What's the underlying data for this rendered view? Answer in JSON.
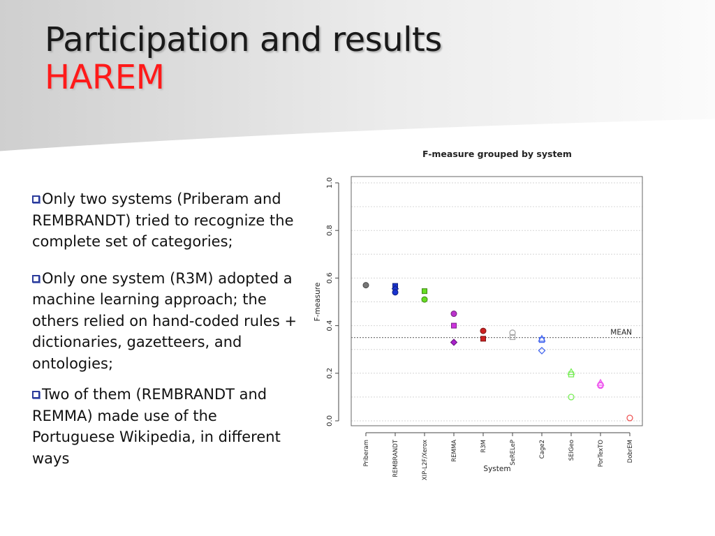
{
  "slide": {
    "title": "Participation and results",
    "subtitle": "HAREM",
    "bullets": [
      "Only two systems (Priberam and REMBRANDT) tried to recognize the complete set of categories;",
      "Only one system (R3M) adopted a machine learning approach; the others relied on hand-coded rules  + dictionaries, gazetteers, and ontologies;",
      "Two of them (REMBRANDT and REMMA) made use of the Portuguese Wikipedia, in different ways"
    ]
  },
  "colors": {
    "title": "#1a1a1a",
    "subtitle": "#ff1a1a",
    "bullet_box": "#2a3a9a"
  },
  "chart_data": {
    "type": "scatter",
    "title": "F-measure grouped by system",
    "xlabel": "System",
    "ylabel": "F-measure",
    "ylim": [
      0,
      1
    ],
    "y_ticks": [
      "0.0",
      "0.2",
      "0.4",
      "0.6",
      "0.8",
      "1.0"
    ],
    "grid": true,
    "categories": [
      "Priberam",
      "REMBRANDT",
      "XIP-L2F/Xerox",
      "REMMA",
      "R3M",
      "SeRELeP",
      "Cage2",
      "SEIGeo",
      "PorTexTO",
      "DobrEM"
    ],
    "mean": 0.35,
    "mean_label": "MEAN",
    "points": [
      {
        "x": "Priberam",
        "y": 0.57,
        "shape": "circle",
        "color": "#777777",
        "filled": true
      },
      {
        "x": "REMBRANDT",
        "y": 0.567,
        "shape": "square",
        "color": "#1a34d0",
        "filled": true
      },
      {
        "x": "REMBRANDT",
        "y": 0.555,
        "shape": "diamond",
        "color": "#1a34d0",
        "filled": true
      },
      {
        "x": "REMBRANDT",
        "y": 0.54,
        "shape": "circle",
        "color": "#1a34d0",
        "filled": true
      },
      {
        "x": "XIP-L2F/Xerox",
        "y": 0.545,
        "shape": "square",
        "color": "#66dd22",
        "filled": true
      },
      {
        "x": "XIP-L2F/Xerox",
        "y": 0.51,
        "shape": "circle",
        "color": "#66dd22",
        "filled": true
      },
      {
        "x": "REMMA",
        "y": 0.45,
        "shape": "circle",
        "color": "#bb33cc",
        "filled": true
      },
      {
        "x": "REMMA",
        "y": 0.4,
        "shape": "square",
        "color": "#cc33dd",
        "filled": true
      },
      {
        "x": "REMMA",
        "y": 0.33,
        "shape": "diamond",
        "color": "#aa22cc",
        "filled": true
      },
      {
        "x": "R3M",
        "y": 0.378,
        "shape": "circle",
        "color": "#cc2222",
        "filled": true
      },
      {
        "x": "R3M",
        "y": 0.345,
        "shape": "square",
        "color": "#cc2222",
        "filled": true
      },
      {
        "x": "SeRELeP",
        "y": 0.37,
        "shape": "circle",
        "color": "#aaaaaa",
        "filled": false
      },
      {
        "x": "SeRELeP",
        "y": 0.352,
        "shape": "square",
        "color": "#aaaaaa",
        "filled": false
      },
      {
        "x": "Cage2",
        "y": 0.345,
        "shape": "triangle",
        "color": "#4466ee",
        "filled": false
      },
      {
        "x": "Cage2",
        "y": 0.34,
        "shape": "square",
        "color": "#4466ee",
        "filled": false
      },
      {
        "x": "Cage2",
        "y": 0.295,
        "shape": "diamond",
        "color": "#4466ee",
        "filled": false
      },
      {
        "x": "SEIGeo",
        "y": 0.205,
        "shape": "triangle",
        "color": "#77ee55",
        "filled": false
      },
      {
        "x": "SEIGeo",
        "y": 0.195,
        "shape": "square",
        "color": "#77ee55",
        "filled": false
      },
      {
        "x": "SEIGeo",
        "y": 0.1,
        "shape": "circle",
        "color": "#77ee55",
        "filled": false
      },
      {
        "x": "PorTexTO",
        "y": 0.16,
        "shape": "triangle",
        "color": "#ee55ee",
        "filled": false
      },
      {
        "x": "PorTexTO",
        "y": 0.152,
        "shape": "circle",
        "color": "#ee55ee",
        "filled": false
      },
      {
        "x": "PorTexTO",
        "y": 0.148,
        "shape": "circle",
        "color": "#ee55ee",
        "filled": false
      },
      {
        "x": "DobrEM",
        "y": 0.012,
        "shape": "circle",
        "color": "#ee5555",
        "filled": false
      }
    ]
  }
}
